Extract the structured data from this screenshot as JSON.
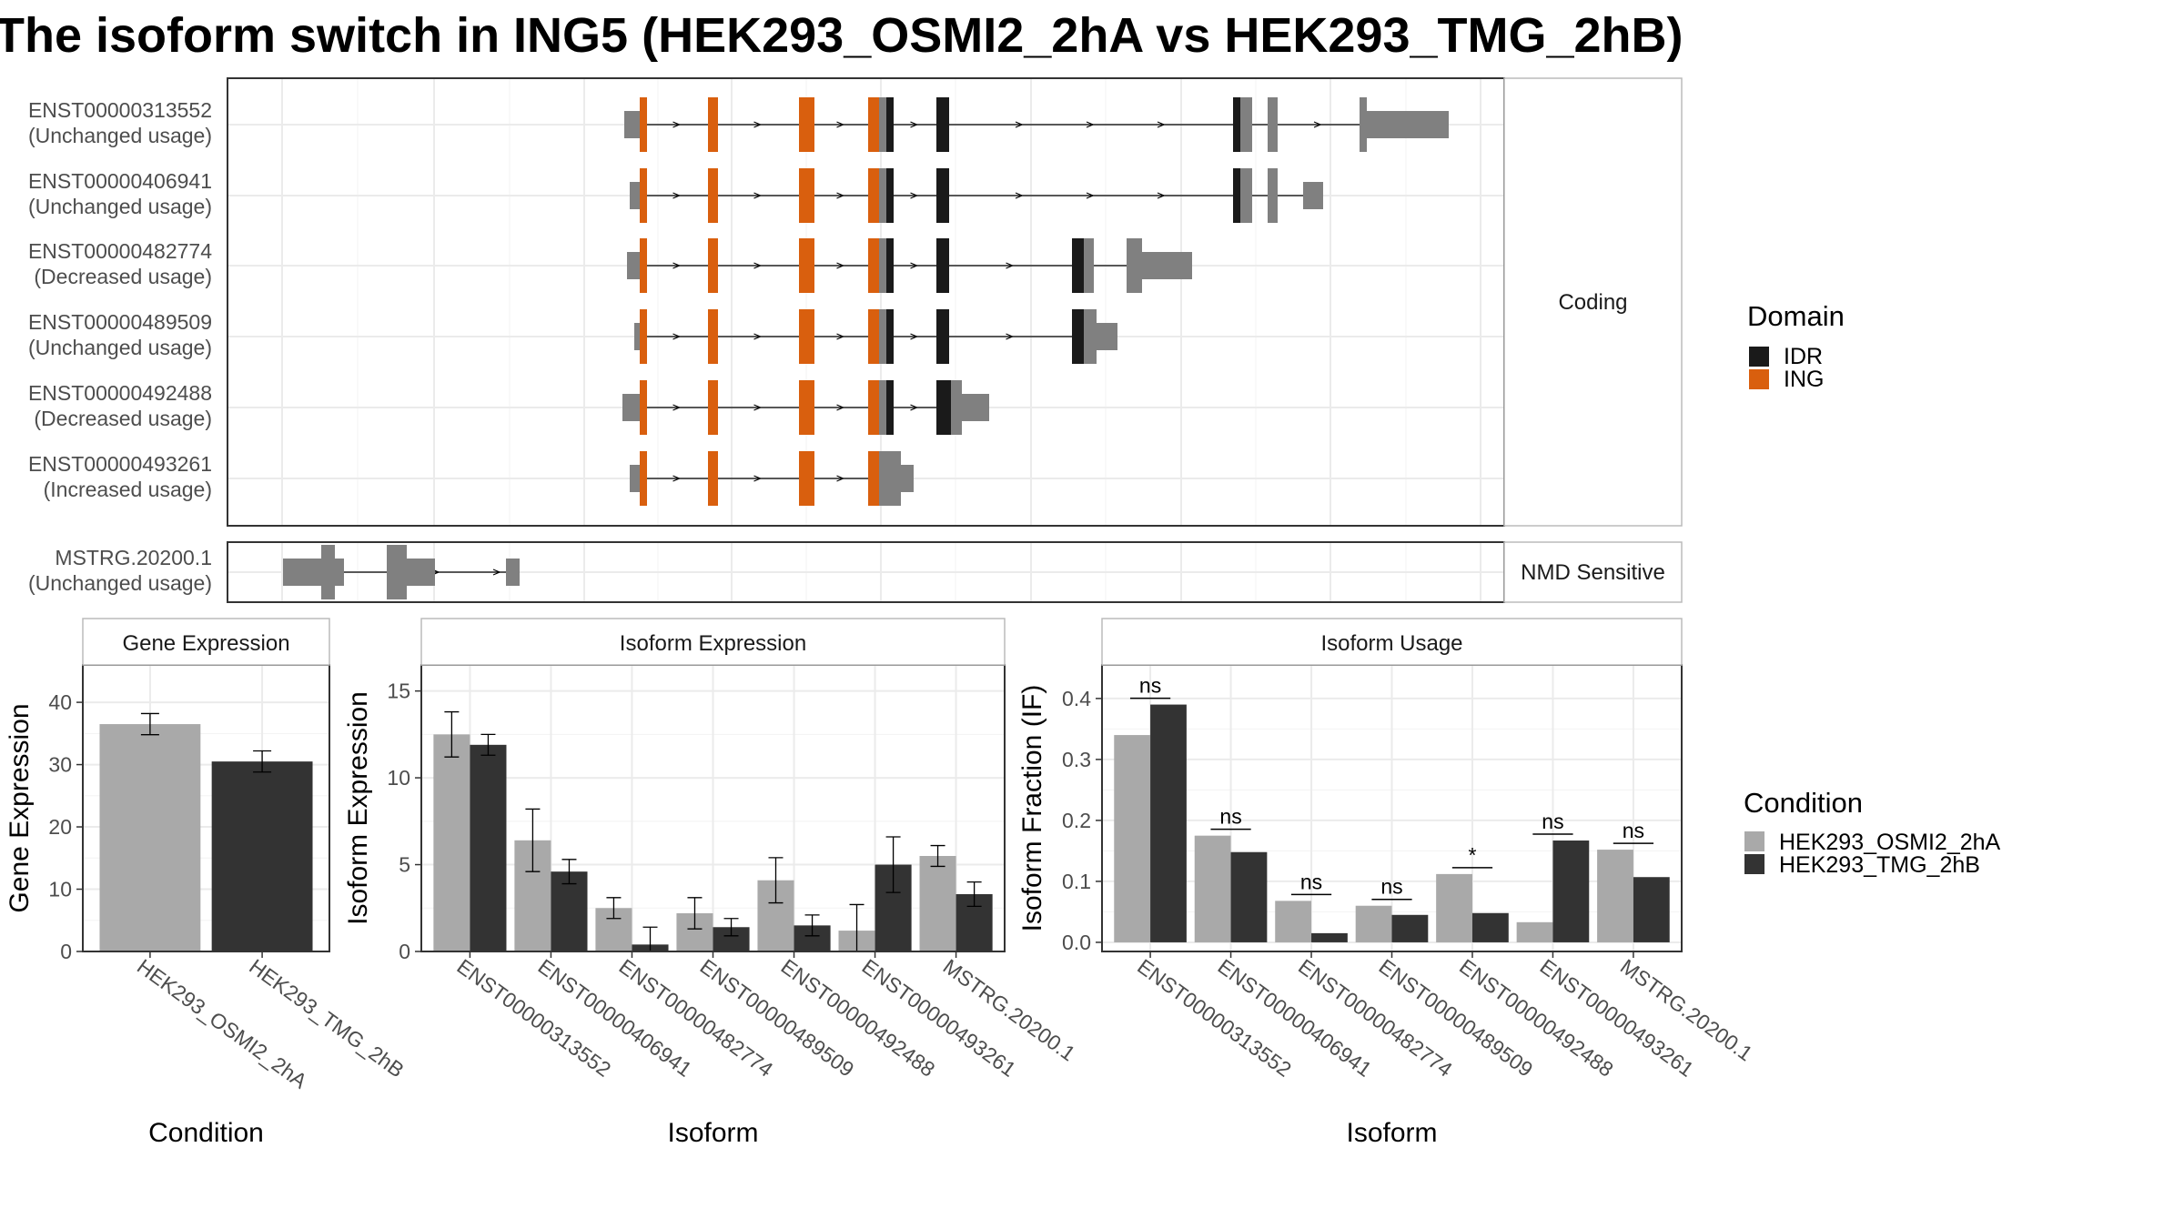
{
  "title": "The isoform switch in ING5 (HEK293_OSMI2_2hA vs HEK293_TMG_2hB)",
  "colors": {
    "exon": "#808080",
    "IDR": "#1a1a1a",
    "ING": "#d95f0e",
    "cond1": "#a9a9a9",
    "cond2": "#333333",
    "panel_border": "#333333",
    "strip_border": "#bbbbbb",
    "grid": "#ebebeb"
  },
  "structure": {
    "coding_label": "Coding",
    "nmd_label": "NMD Sensitive",
    "domain_legend": {
      "title": "Domain",
      "items": [
        "IDR",
        "ING"
      ]
    },
    "isoforms": [
      {
        "id": "ENST00000313552",
        "status": "(Unchanged usage)"
      },
      {
        "id": "ENST00000406941",
        "status": "(Unchanged usage)"
      },
      {
        "id": "ENST00000482774",
        "status": "(Decreased usage)"
      },
      {
        "id": "ENST00000489509",
        "status": "(Unchanged usage)"
      },
      {
        "id": "ENST00000492488",
        "status": "(Decreased usage)"
      },
      {
        "id": "ENST00000493261",
        "status": "(Increased usage)"
      }
    ],
    "nmd_isoforms": [
      {
        "id": "MSTRG.20200.1",
        "status": "(Unchanged usage)"
      }
    ]
  },
  "condition_legend": {
    "title": "Condition",
    "items": [
      "HEK293_OSMI2_2hA",
      "HEK293_TMG_2hB"
    ]
  },
  "chart_data": [
    {
      "type": "bar",
      "title": "Gene Expression",
      "xlabel": "Condition",
      "ylabel": "Gene Expression",
      "ylim": [
        0,
        46
      ],
      "yticks": [
        0,
        10,
        20,
        30,
        40
      ],
      "categories": [
        "HEK293_OSMI2_2hA",
        "HEK293_TMG_2hB"
      ],
      "values": [
        36.5,
        30.5
      ],
      "errors": [
        [
          34.8,
          38.2
        ],
        [
          28.8,
          32.2
        ]
      ]
    },
    {
      "type": "bar",
      "title": "Isoform Expression",
      "xlabel": "Isoform",
      "ylabel": "Isoform Expression",
      "ylim": [
        0,
        16.5
      ],
      "yticks": [
        0,
        5,
        10,
        15
      ],
      "categories": [
        "ENST00000313552",
        "ENST00000406941",
        "ENST00000482774",
        "ENST00000489509",
        "ENST00000492488",
        "ENST00000493261",
        "MSTRG.20200.1"
      ],
      "series": [
        {
          "name": "HEK293_OSMI2_2hA",
          "values": [
            12.5,
            6.4,
            2.5,
            2.2,
            4.1,
            1.2,
            5.5
          ],
          "errors": [
            [
              11.2,
              13.8
            ],
            [
              4.6,
              8.2
            ],
            [
              1.9,
              3.1
            ],
            [
              1.3,
              3.1
            ],
            [
              2.8,
              5.4
            ],
            [
              0.0,
              2.7
            ],
            [
              4.9,
              6.1
            ]
          ]
        },
        {
          "name": "HEK293_TMG_2hB",
          "values": [
            11.9,
            4.6,
            0.4,
            1.4,
            1.5,
            5.0,
            3.3
          ],
          "errors": [
            [
              11.3,
              12.5
            ],
            [
              3.9,
              5.3
            ],
            [
              0.0,
              1.4
            ],
            [
              0.9,
              1.9
            ],
            [
              0.9,
              2.1
            ],
            [
              3.4,
              6.6
            ],
            [
              2.6,
              4.0
            ]
          ]
        }
      ]
    },
    {
      "type": "bar",
      "title": "Isoform Usage",
      "xlabel": "Isoform",
      "ylabel": "Isoform Fraction (IF)",
      "ylim": [
        -0.015,
        0.455
      ],
      "yticks": [
        0.0,
        0.1,
        0.2,
        0.3,
        0.4
      ],
      "ytick_labels": [
        "0.0",
        "0.1",
        "0.2",
        "0.3",
        "0.4"
      ],
      "categories": [
        "ENST00000313552",
        "ENST00000406941",
        "ENST00000482774",
        "ENST00000489509",
        "ENST00000492488",
        "ENST00000493261",
        "MSTRG.20200.1"
      ],
      "series": [
        {
          "name": "HEK293_OSMI2_2hA",
          "values": [
            0.34,
            0.175,
            0.068,
            0.06,
            0.112,
            0.033,
            0.152
          ]
        },
        {
          "name": "HEK293_TMG_2hB",
          "values": [
            0.39,
            0.148,
            0.015,
            0.045,
            0.048,
            0.167,
            0.107
          ]
        }
      ],
      "significance": [
        "ns",
        "ns",
        "ns",
        "ns",
        "*",
        "ns",
        "ns"
      ]
    }
  ]
}
